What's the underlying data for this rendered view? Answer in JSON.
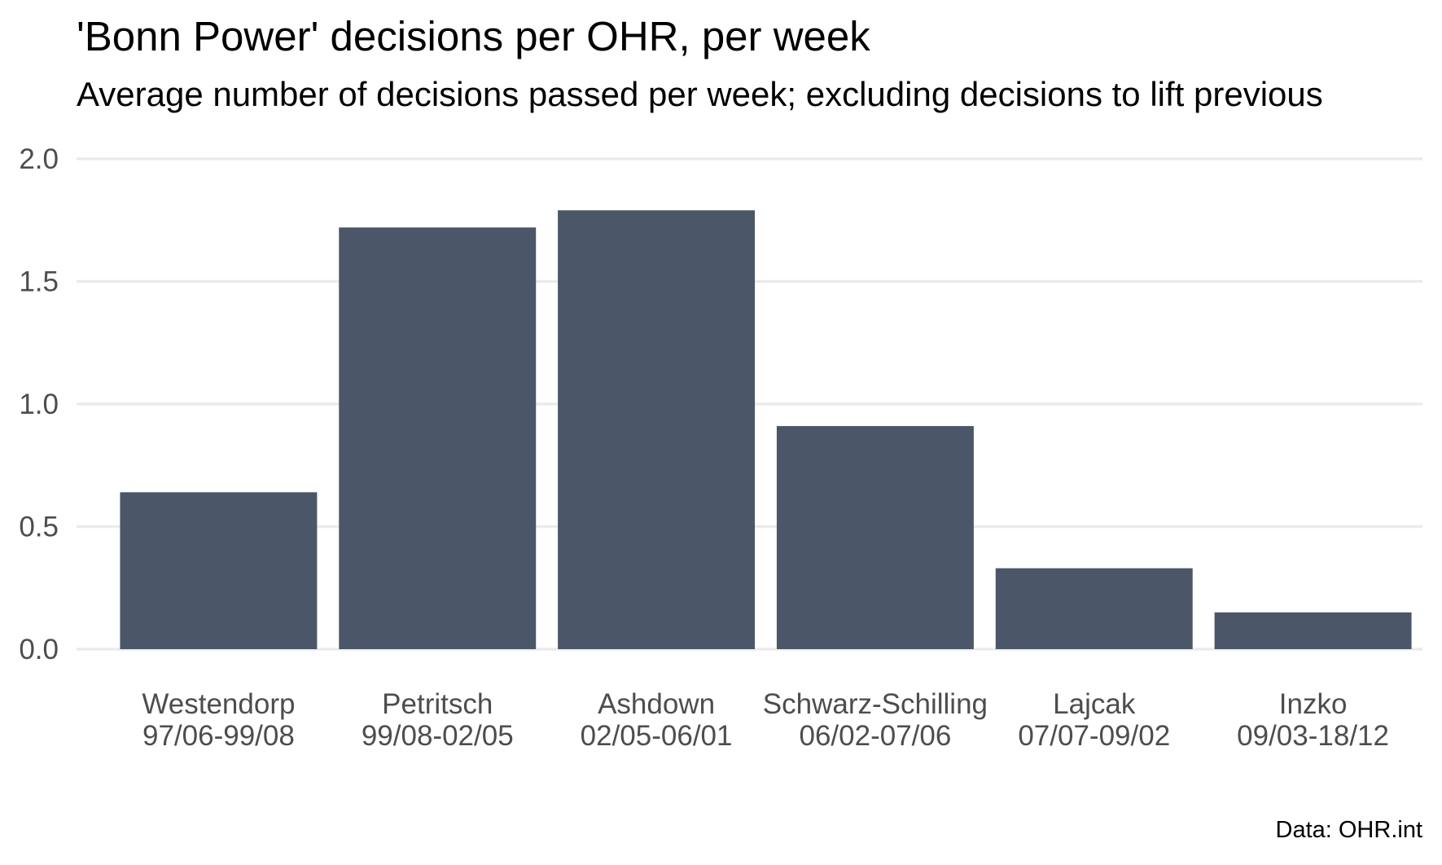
{
  "chart_data": {
    "type": "bar",
    "title": "'Bonn Power' decisions per OHR, per week",
    "subtitle": "Average number of decisions passed per week; excluding decisions to lift previous",
    "caption": "Data: OHR.int",
    "xlabel": "",
    "ylabel": "",
    "categories": [
      {
        "name": "Westendorp",
        "period": "97/06-99/08"
      },
      {
        "name": "Petritsch",
        "period": "99/08-02/05"
      },
      {
        "name": "Ashdown",
        "period": "02/05-06/01"
      },
      {
        "name": "Schwarz-Schilling",
        "period": "06/02-07/06"
      },
      {
        "name": "Lajcak",
        "period": "07/07-09/02"
      },
      {
        "name": "Inzko",
        "period": "09/03-18/12"
      }
    ],
    "values": [
      0.64,
      1.72,
      1.79,
      0.91,
      0.33,
      0.15
    ],
    "ylim": [
      0,
      2.0
    ],
    "yticks": [
      "0.0",
      "0.5",
      "1.0",
      "1.5",
      "2.0"
    ],
    "grid": true,
    "legend": "none",
    "colors": {
      "bar": "#4b5669",
      "grid": "#ebebeb",
      "axis_text": "#4d4d4d"
    }
  }
}
